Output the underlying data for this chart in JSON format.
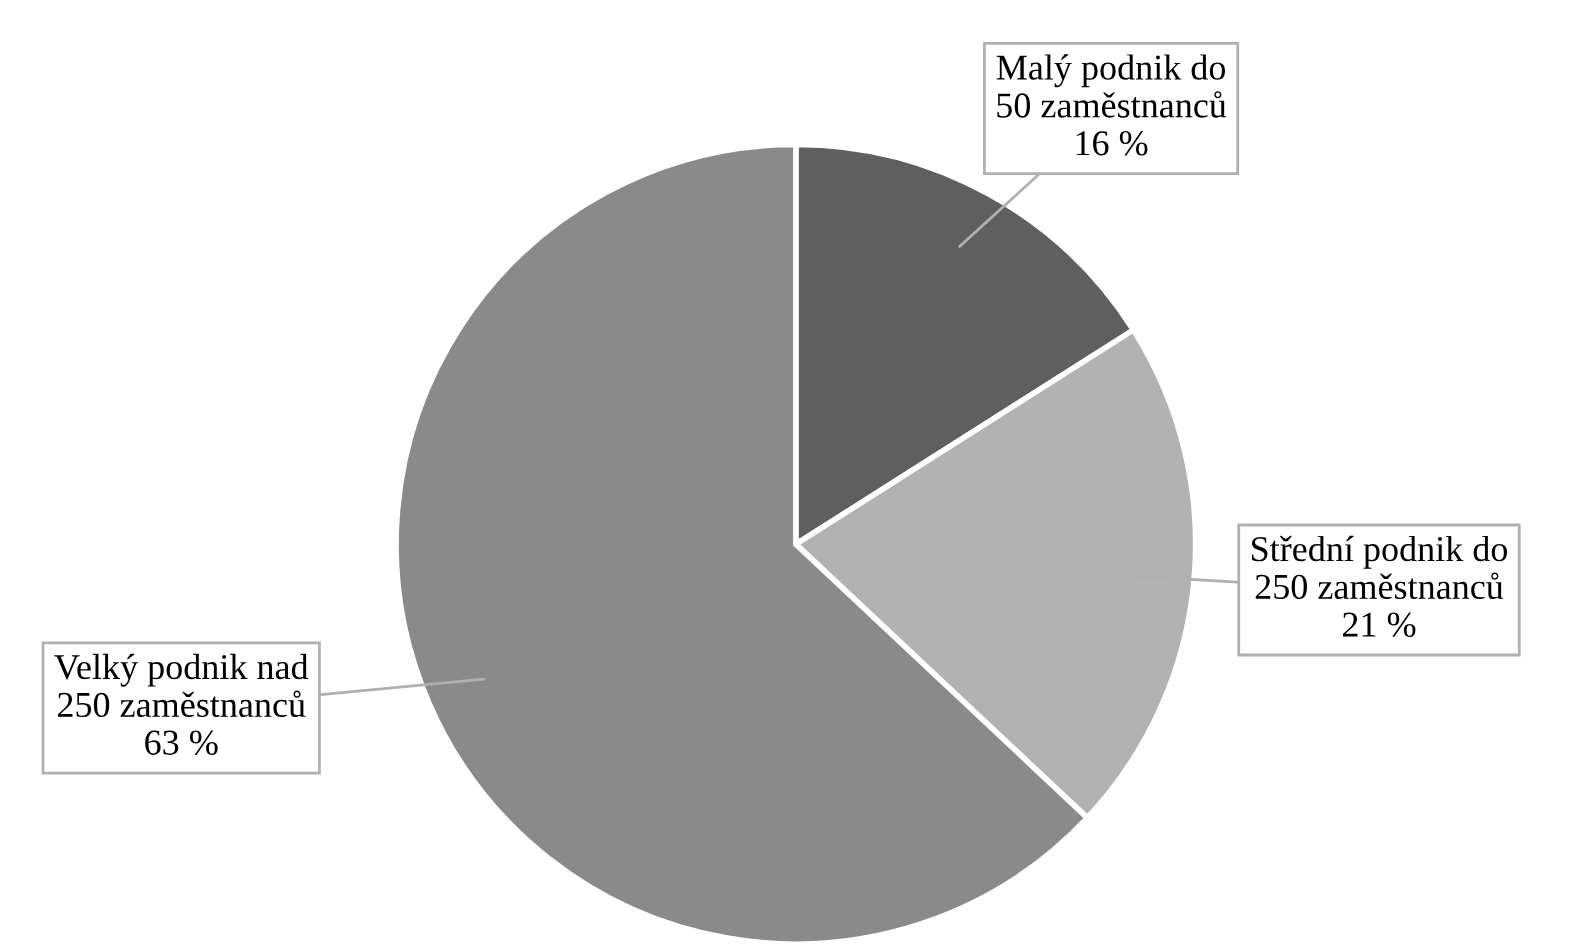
{
  "chart_data": {
    "type": "pie",
    "categories": [
      "Malý podnik do 50 zaměstnanců",
      "Střední podnik do 250 zaměstnanců",
      "Velký podnik nad 250 zaměstnanců"
    ],
    "values": [
      16,
      21,
      63
    ],
    "colors": [
      "#5f5f5f",
      "#b2b2b2",
      "#8a8a8a"
    ],
    "value_labels": [
      "16 %",
      "21 %",
      "63 %"
    ]
  }
}
